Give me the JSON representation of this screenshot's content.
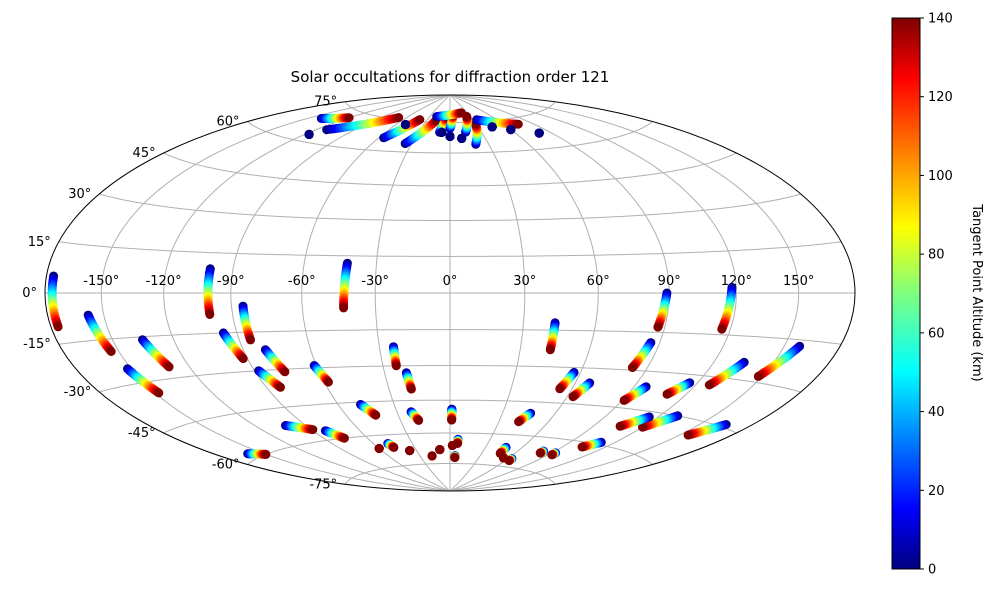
{
  "chart_data": {
    "type": "scatter",
    "projection": "aitoff-hammer",
    "title": "Solar occultations for diffraction order 121",
    "xlabel": "",
    "ylabel": "",
    "grid": true,
    "lon_ticks": [
      "-150°",
      "-120°",
      "-90°",
      "-60°",
      "-30°",
      "0°",
      "30°",
      "60°",
      "90°",
      "120°",
      "150°"
    ],
    "lat_ticks": [
      "-75°",
      "-60°",
      "-45°",
      "-30°",
      "-15°",
      "0°",
      "15°",
      "30°",
      "45°",
      "60°",
      "75°"
    ],
    "colorbar": {
      "label": "Tangent Point Altitude (km)",
      "colormap": "jet",
      "range": [
        0,
        140
      ],
      "ticks": [
        "0",
        "20",
        "40",
        "60",
        "80",
        "100",
        "120",
        "140"
      ]
    },
    "series": [
      {
        "lon": [
          -176,
          -176
        ],
        "lat": [
          5,
          -10
        ],
        "alt": [
          0,
          140
        ]
      },
      {
        "lon": [
          -158,
          -154
        ],
        "lat": [
          -7,
          -19
        ],
        "alt": [
          0,
          140
        ]
      },
      {
        "lon": [
          -152,
          -148
        ],
        "lat": [
          -25,
          -34
        ],
        "alt": [
          0,
          140
        ]
      },
      {
        "lon": [
          -135,
          -130
        ],
        "lat": [
          -16,
          -26
        ],
        "alt": [
          0,
          140
        ]
      },
      {
        "lon": [
          -100,
          -100
        ],
        "lat": [
          9,
          -8
        ],
        "alt": [
          0,
          140
        ]
      },
      {
        "lon": [
          -96,
          -92
        ],
        "lat": [
          -15,
          -25
        ],
        "alt": [
          0,
          140
        ]
      },
      {
        "lon": [
          -85,
          -85
        ],
        "lat": [
          -5,
          -18
        ],
        "alt": [
          0,
          140
        ]
      },
      {
        "lon": [
          -80,
          -76
        ],
        "lat": [
          -22,
          -31
        ],
        "alt": [
          0,
          140
        ]
      },
      {
        "lon": [
          -88,
          -83
        ],
        "lat": [
          -30,
          -37
        ],
        "alt": [
          0,
          140
        ]
      },
      {
        "lon": [
          -61,
          -58
        ],
        "lat": [
          -29,
          -36
        ],
        "alt": [
          0,
          140
        ]
      },
      {
        "lon": [
          -42,
          -43
        ],
        "lat": [
          12,
          -6
        ],
        "alt": [
          0,
          140
        ]
      },
      {
        "lon": [
          -24,
          -24
        ],
        "lat": [
          -22,
          -30
        ],
        "alt": [
          0,
          140
        ]
      },
      {
        "lon": [
          -20,
          -19
        ],
        "lat": [
          -33,
          -40
        ],
        "alt": [
          0,
          140
        ]
      },
      {
        "lon": [
          43,
          43
        ],
        "lat": [
          -12,
          -23
        ],
        "alt": [
          0,
          140
        ]
      },
      {
        "lon": [
          89,
          87
        ],
        "lat": [
          0,
          -13
        ],
        "alt": [
          0,
          140
        ]
      },
      {
        "lon": [
          118,
          116
        ],
        "lat": [
          2,
          -13
        ],
        "alt": [
          0,
          140
        ]
      },
      {
        "lon": [
          86,
          83
        ],
        "lat": [
          -19,
          -29
        ],
        "alt": [
          0,
          140
        ]
      },
      {
        "lon": [
          57,
          54
        ],
        "lat": [
          -32,
          -39
        ],
        "alt": [
          0,
          140
        ]
      },
      {
        "lon": [
          67,
          63
        ],
        "lat": [
          -36,
          -42
        ],
        "alt": [
          0,
          140
        ]
      },
      {
        "lon": [
          96,
          91
        ],
        "lat": [
          -36,
          -42
        ],
        "alt": [
          0,
          140
        ]
      },
      {
        "lon": [
          116,
          110
        ],
        "lat": [
          -33,
          -38
        ],
        "alt": [
          0,
          140
        ]
      },
      {
        "lon": [
          135,
          127
        ],
        "lat": [
          -24,
          -33
        ],
        "alt": [
          0,
          140
        ]
      },
      {
        "lon": [
          158,
          148
        ],
        "lat": [
          -17,
          -28
        ],
        "alt": [
          0,
          140
        ]
      },
      {
        "lon": [
          -48,
          -43
        ],
        "lat": [
          -46,
          -51
        ],
        "alt": [
          0,
          140
        ]
      },
      {
        "lon": [
          -22,
          -19
        ],
        "lat": [
          -50,
          -54
        ],
        "alt": [
          0,
          140
        ]
      },
      {
        "lon": [
          1,
          1
        ],
        "lat": [
          -49,
          -54
        ],
        "alt": [
          0,
          140
        ]
      },
      {
        "lon": [
          46,
          42
        ],
        "lat": [
          -50,
          -54
        ],
        "alt": [
          0,
          140
        ]
      },
      {
        "lon": [
          130,
          120
        ],
        "lat": [
          -45,
          -51
        ],
        "alt": [
          0,
          140
        ]
      },
      {
        "lon": [
          115,
          106
        ],
        "lat": [
          -47,
          -52
        ],
        "alt": [
          0,
          140
        ]
      },
      {
        "lon": [
          165,
          155
        ],
        "lat": [
          -44,
          -50
        ],
        "alt": [
          0,
          140
        ]
      },
      {
        "lon": [
          -102,
          -89
        ],
        "lat": [
          -52,
          -55
        ],
        "alt": [
          0,
          140
        ]
      },
      {
        "lon": [
          -82,
          -76
        ],
        "lat": [
          -56,
          -60
        ],
        "alt": [
          0,
          140
        ]
      },
      {
        "lon": [
          111,
          104
        ],
        "lat": [
          -59,
          -62
        ],
        "alt": [
          0,
          140
        ]
      },
      {
        "lon": [
          -160,
          -150
        ],
        "lat": [
          -58,
          -60
        ],
        "alt": [
          0,
          140
        ]
      },
      {
        "lon": [
          -60,
          -60
        ],
        "lat": [
          -66,
          -66
        ],
        "alt": [
          80,
          140
        ]
      },
      {
        "lon": [
          -49,
          -47
        ],
        "lat": [
          -64,
          -66
        ],
        "alt": [
          0,
          140
        ]
      },
      {
        "lon": [
          -36,
          -36
        ],
        "lat": [
          -68,
          -68
        ],
        "alt": [
          120,
          140
        ]
      },
      {
        "lon": [
          -18,
          -18
        ],
        "lat": [
          -71,
          -71
        ],
        "alt": [
          0,
          140
        ]
      },
      {
        "lon": [
          -9,
          -9
        ],
        "lat": [
          -68,
          -68
        ],
        "alt": [
          140,
          140
        ]
      },
      {
        "lon": [
          2,
          2
        ],
        "lat": [
          -66,
          -66
        ],
        "alt": [
          40,
          140
        ]
      },
      {
        "lon": [
          6,
          6
        ],
        "lat": [
          -63,
          -65
        ],
        "alt": [
          0,
          140
        ]
      },
      {
        "lon": [
          5,
          5
        ],
        "lat": [
          -71,
          -72
        ],
        "alt": [
          0,
          140
        ]
      },
      {
        "lon": [
          47,
          47
        ],
        "lat": [
          -66,
          -69
        ],
        "alt": [
          0,
          140
        ]
      },
      {
        "lon": [
          55,
          55
        ],
        "lat": [
          -71,
          -71
        ],
        "alt": [
          120,
          140
        ]
      },
      {
        "lon": [
          64,
          64
        ],
        "lat": [
          -71,
          -72
        ],
        "alt": [
          0,
          140
        ]
      },
      {
        "lon": [
          81,
          81
        ],
        "lat": [
          -66,
          -67
        ],
        "alt": [
          0,
          140
        ]
      },
      {
        "lon": [
          93,
          93
        ],
        "lat": [
          -66,
          -67
        ],
        "alt": [
          0,
          140
        ]
      },
      {
        "lon": [
          -140,
          -120
        ],
        "lat": [
          69,
          72
        ],
        "alt": [
          0,
          140
        ]
      },
      {
        "lon": [
          -112,
          -70
        ],
        "lat": [
          66,
          76
        ],
        "alt": [
          0,
          140
        ]
      },
      {
        "lon": [
          -56,
          -40
        ],
        "lat": [
          66,
          76
        ],
        "alt": [
          0,
          140
        ]
      },
      {
        "lon": [
          -35,
          -18
        ],
        "lat": [
          64,
          76
        ],
        "alt": [
          0,
          140
        ]
      },
      {
        "lon": [
          -10,
          -5
        ],
        "lat": [
          70,
          78
        ],
        "alt": [
          0,
          140
        ]
      },
      {
        "lon": [
          0,
          5
        ],
        "lat": [
          72,
          79
        ],
        "alt": [
          0,
          140
        ]
      },
      {
        "lon": [
          20,
          30
        ],
        "lat": [
          64,
          74
        ],
        "alt": [
          0,
          140
        ]
      },
      {
        "lon": [
          15,
          25
        ],
        "lat": [
          70,
          78
        ],
        "alt": [
          0,
          140
        ]
      },
      {
        "lon": [
          35,
          75
        ],
        "lat": [
          76,
          72
        ],
        "alt": [
          0,
          140
        ]
      },
      {
        "lon": [
          -20,
          20
        ],
        "lat": [
          78,
          80
        ],
        "alt": [
          0,
          140
        ]
      },
      {
        "lon": [
          -8,
          -8
        ],
        "lat": [
          70,
          70
        ],
        "alt": [
          0,
          0
        ]
      },
      {
        "lon": [
          0,
          0
        ],
        "lat": [
          68,
          68
        ],
        "alt": [
          0,
          0
        ]
      },
      {
        "lon": [
          10,
          10
        ],
        "lat": [
          67,
          67
        ],
        "alt": [
          0,
          0
        ]
      },
      {
        "lon": [
          -50,
          -50
        ],
        "lat": [
          73,
          73
        ],
        "alt": [
          0,
          0
        ]
      },
      {
        "lon": [
          45,
          45
        ],
        "lat": [
          72,
          72
        ],
        "alt": [
          0,
          0
        ]
      },
      {
        "lon": [
          60,
          60
        ],
        "lat": [
          70,
          70
        ],
        "alt": [
          0,
          0
        ]
      },
      {
        "lon": [
          80,
          80
        ],
        "lat": [
          67,
          67
        ],
        "alt": [
          0,
          0
        ]
      },
      {
        "lon": [
          -117,
          -117
        ],
        "lat": [
          63,
          63
        ],
        "alt": [
          0,
          0
        ]
      }
    ]
  }
}
